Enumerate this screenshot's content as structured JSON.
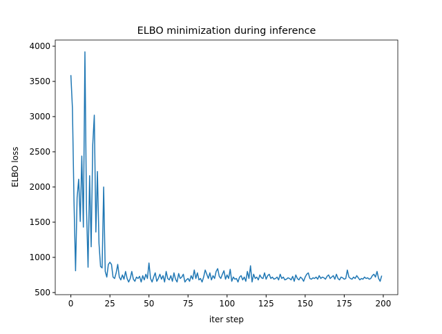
{
  "chart_data": {
    "type": "line",
    "title": "ELBO minimization during inference",
    "xlabel": "iter step",
    "ylabel": "ELBO loss",
    "x": [
      0,
      1,
      2,
      3,
      4,
      5,
      6,
      7,
      8,
      9,
      10,
      11,
      12,
      13,
      14,
      15,
      16,
      17,
      18,
      19,
      20,
      21,
      22,
      23,
      24,
      25,
      26,
      27,
      28,
      29,
      30,
      31,
      32,
      33,
      34,
      35,
      36,
      37,
      38,
      39,
      40,
      41,
      42,
      43,
      44,
      45,
      46,
      47,
      48,
      49,
      50,
      51,
      52,
      53,
      54,
      55,
      56,
      57,
      58,
      59,
      60,
      61,
      62,
      63,
      64,
      65,
      66,
      67,
      68,
      69,
      70,
      71,
      72,
      73,
      74,
      75,
      76,
      77,
      78,
      79,
      80,
      81,
      82,
      83,
      84,
      85,
      86,
      87,
      88,
      89,
      90,
      91,
      92,
      93,
      94,
      95,
      96,
      97,
      98,
      99,
      100,
      101,
      102,
      103,
      104,
      105,
      106,
      107,
      108,
      109,
      110,
      111,
      112,
      113,
      114,
      115,
      116,
      117,
      118,
      119,
      120,
      121,
      122,
      123,
      124,
      125,
      126,
      127,
      128,
      129,
      130,
      131,
      132,
      133,
      134,
      135,
      136,
      137,
      138,
      139,
      140,
      141,
      142,
      143,
      144,
      145,
      146,
      147,
      148,
      149,
      150,
      151,
      152,
      153,
      154,
      155,
      156,
      157,
      158,
      159,
      160,
      161,
      162,
      163,
      164,
      165,
      166,
      167,
      168,
      169,
      170,
      171,
      172,
      173,
      174,
      175,
      176,
      177,
      178,
      179,
      180,
      181,
      182,
      183,
      184,
      185,
      186,
      187,
      188,
      189,
      190,
      191,
      192,
      193,
      194,
      195,
      196,
      197,
      198,
      199
    ],
    "series": [
      {
        "color": "#1f77b4",
        "values": [
          3590,
          3120,
          1800,
          810,
          1850,
          2110,
          1510,
          2440,
          1430,
          3920,
          1700,
          860,
          2160,
          1150,
          2600,
          3020,
          1360,
          2220,
          1200,
          870,
          850,
          2000,
          800,
          720,
          900,
          930,
          900,
          720,
          700,
          780,
          900,
          720,
          680,
          750,
          690,
          800,
          700,
          650,
          700,
          800,
          690,
          660,
          720,
          700,
          730,
          650,
          740,
          680,
          760,
          700,
          920,
          700,
          650,
          720,
          780,
          660,
          700,
          760,
          690,
          740,
          650,
          800,
          700,
          680,
          740,
          660,
          780,
          690,
          650,
          770,
          700,
          720,
          760,
          650,
          680,
          700,
          660,
          740,
          690,
          820,
          700,
          780,
          680,
          700,
          650,
          720,
          820,
          760,
          700,
          780,
          680,
          740,
          700,
          800,
          840,
          730,
          700,
          760,
          810,
          690,
          750,
          700,
          830,
          660,
          720,
          690,
          700,
          650,
          720,
          740,
          680,
          720,
          660,
          800,
          700,
          880,
          650,
          760,
          700,
          720,
          680,
          750,
          710,
          700,
          780,
          690,
          740,
          760,
          700,
          720,
          690,
          700,
          720,
          680,
          760,
          700,
          720,
          680,
          690,
          710,
          700,
          680,
          730,
          660,
          750,
          700,
          680,
          720,
          700,
          660,
          720,
          760,
          780,
          700,
          690,
          710,
          700,
          720,
          690,
          740,
          700,
          720,
          710,
          690,
          730,
          750,
          700,
          720,
          740,
          690,
          760,
          700,
          680,
          720,
          710,
          690,
          700,
          820,
          720,
          700,
          690,
          720,
          700,
          740,
          710,
          680,
          700,
          690,
          720,
          700,
          710,
          690,
          700,
          740,
          760,
          720,
          800,
          700,
          660,
          740
        ]
      }
    ],
    "xlim": [
      -10,
      209.3
    ],
    "xticks": [
      0,
      25,
      50,
      75,
      100,
      125,
      150,
      175,
      200
    ],
    "ylim": [
      470,
      4088
    ],
    "yticks": [
      500,
      1000,
      1500,
      2000,
      2500,
      3000,
      3500,
      4000
    ]
  }
}
